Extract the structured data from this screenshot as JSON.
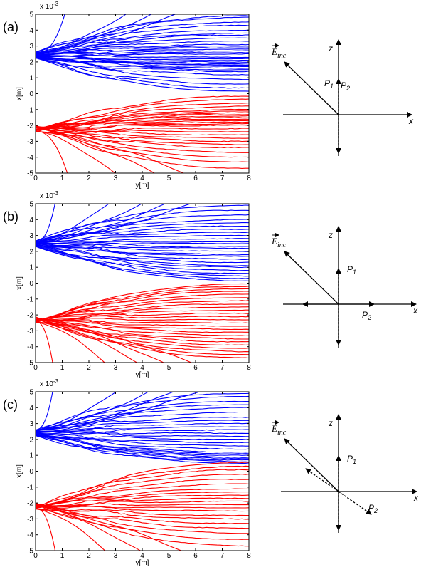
{
  "colors": {
    "upper_beam": "#0000ff",
    "lower_beam": "#ff0000",
    "axis": "#000000"
  },
  "chart_data": [
    {
      "panel": "(a)",
      "type": "line",
      "xlabel": "y[m]",
      "ylabel": "x[m]",
      "exponent_label": "x 10",
      "exponent_power": "-3",
      "xlim": [
        0,
        8
      ],
      "ylim": [
        -5,
        5
      ],
      "xticks": [
        "0",
        "1",
        "2",
        "3",
        "4",
        "5",
        "6",
        "7",
        "8"
      ],
      "yticks": [
        "5",
        "4",
        "3",
        "2",
        "1",
        "0",
        "-1",
        "-2",
        "-3",
        "-4",
        "-5"
      ],
      "grid": false,
      "beams": [
        {
          "color": "#0000ff",
          "source_center": 2.4,
          "source_spread": 0.35,
          "end_values": [
            4.9,
            4.8,
            4.5,
            4.3,
            4.0,
            3.8,
            3.7,
            3.5,
            3.3,
            3.1,
            3.0,
            2.9,
            2.8,
            2.7,
            2.6,
            2.5,
            2.3,
            2.2,
            2.1,
            2.0,
            1.9,
            1.8,
            1.8,
            1.7,
            1.6,
            1.5,
            1.4,
            1.2,
            0.9,
            0.6,
            0.35,
            0.15
          ],
          "early_exits": [
            {
              "y": 1.2,
              "x": 5.0
            },
            {
              "y": 3.9,
              "x": 5.0
            },
            {
              "y": 5.0,
              "x": 5.0
            },
            {
              "y": 6.1,
              "x": 5.0
            }
          ]
        },
        {
          "color": "#ff0000",
          "source_center": -2.2,
          "source_spread": 0.35,
          "end_values": [
            -0.15,
            -0.35,
            -0.6,
            -0.8,
            -1.0,
            -1.1,
            -1.2,
            -1.3,
            -1.4,
            -1.5,
            -1.6,
            -1.7,
            -1.8,
            -1.9,
            -2.0,
            -2.2,
            -2.4,
            -2.6,
            -2.8,
            -3.0,
            -3.2,
            -3.4,
            -3.7,
            -4.0,
            -4.3,
            -4.7
          ],
          "early_exits": [
            {
              "y": 1.3,
              "x": -5.0
            },
            {
              "y": 3.4,
              "x": -5.0
            },
            {
              "y": 5.1,
              "x": -5.0
            },
            {
              "y": 6.4,
              "x": -5.0
            }
          ]
        }
      ]
    },
    {
      "panel": "(b)",
      "type": "line",
      "xlabel": "y[m]",
      "ylabel": "x[m]",
      "exponent_label": "x 10",
      "exponent_power": "-3",
      "xlim": [
        0,
        8
      ],
      "ylim": [
        -5,
        5
      ],
      "xticks": [
        "0",
        "1",
        "2",
        "3",
        "4",
        "5",
        "6",
        "7",
        "8"
      ],
      "yticks": [
        "5",
        "4",
        "3",
        "2",
        "1",
        "0",
        "-1",
        "-2",
        "-3",
        "-4",
        "-5"
      ],
      "grid": false,
      "beams": [
        {
          "color": "#0000ff",
          "source_center": 2.5,
          "source_spread": 0.3,
          "end_values": [
            4.9,
            4.6,
            4.3,
            4.0,
            3.8,
            3.6,
            3.4,
            3.2,
            3.0,
            2.8,
            2.6,
            2.5,
            2.3,
            2.2,
            2.0,
            1.8,
            1.7,
            1.5,
            1.3,
            1.1,
            1.0,
            0.8,
            0.6,
            0.45,
            0.3,
            0.15
          ],
          "early_exits": [
            {
              "y": 0.8,
              "x": 5.0
            },
            {
              "y": 3.2,
              "x": 5.0
            },
            {
              "y": 4.6,
              "x": 5.0
            },
            {
              "y": 5.7,
              "x": 5.0
            },
            {
              "y": 6.8,
              "x": 5.0
            }
          ]
        },
        {
          "color": "#ff0000",
          "source_center": -2.3,
          "source_spread": 0.3,
          "end_values": [
            -0.05,
            -0.2,
            -0.35,
            -0.5,
            -0.7,
            -0.9,
            -1.1,
            -1.3,
            -1.5,
            -1.7,
            -1.9,
            -2.1,
            -2.3,
            -2.5,
            -2.7,
            -2.9,
            -3.1,
            -3.3,
            -3.5,
            -3.7,
            -3.9,
            -4.1,
            -4.3,
            -4.5,
            -4.7
          ],
          "early_exits": [
            {
              "y": 0.7,
              "x": -5.0
            },
            {
              "y": 3.0,
              "x": -5.0
            },
            {
              "y": 4.4,
              "x": -5.0
            },
            {
              "y": 5.5,
              "x": -5.0
            },
            {
              "y": 6.7,
              "x": -5.0
            }
          ]
        }
      ]
    },
    {
      "panel": "(c)",
      "type": "line",
      "xlabel": "y[m]",
      "ylabel": "x[m]",
      "exponent_label": "x 10",
      "exponent_power": "-3",
      "xlim": [
        0,
        8
      ],
      "ylim": [
        -5,
        5
      ],
      "xticks": [
        "0",
        "1",
        "2",
        "3",
        "4",
        "5",
        "6",
        "7",
        "8"
      ],
      "yticks": [
        "5",
        "4",
        "3",
        "2",
        "1",
        "0",
        "-1",
        "-2",
        "-3",
        "-4",
        "-5"
      ],
      "grid": false,
      "beams": [
        {
          "color": "#0000ff",
          "source_center": 2.4,
          "source_spread": 0.35,
          "end_values": [
            4.9,
            4.7,
            4.4,
            4.2,
            4.0,
            3.7,
            3.4,
            3.2,
            3.0,
            2.8,
            2.6,
            2.4,
            2.2,
            2.0,
            1.8,
            1.6,
            1.4,
            1.2,
            1.1,
            1.0,
            0.9,
            0.8,
            0.7,
            0.6,
            0.5
          ],
          "early_exits": [
            {
              "y": 0.7,
              "x": 5.0
            },
            {
              "y": 3.5,
              "x": 5.0
            },
            {
              "y": 4.9,
              "x": 5.0
            },
            {
              "y": 6.0,
              "x": 5.0
            },
            {
              "y": 7.1,
              "x": 5.0
            }
          ]
        },
        {
          "color": "#ff0000",
          "source_center": -2.2,
          "source_spread": 0.35,
          "end_values": [
            0.55,
            0.3,
            0.1,
            -0.2,
            -0.5,
            -0.8,
            -1.1,
            -1.3,
            -1.5,
            -1.7,
            -1.9,
            -2.1,
            -2.3,
            -2.5,
            -2.8,
            -3.0,
            -3.3,
            -3.6,
            -3.9,
            -4.3,
            -4.7
          ],
          "early_exits": [
            {
              "y": 0.8,
              "x": -5.0
            },
            {
              "y": 3.0,
              "x": -5.0
            },
            {
              "y": 4.5,
              "x": -5.0
            },
            {
              "y": 6.3,
              "x": -5.0
            }
          ]
        }
      ]
    }
  ],
  "diagrams": [
    {
      "panel": "(a)",
      "axis_z": "z",
      "axis_x": "x",
      "field_label": "E",
      "field_subscript": "inc",
      "p1_label": "P",
      "p1_sub": "1",
      "p2_label": "P",
      "p2_sub": "2"
    },
    {
      "panel": "(b)",
      "axis_z": "z",
      "axis_x": "x",
      "field_label": "E",
      "field_subscript": "inc",
      "p1_label": "P",
      "p1_sub": "1",
      "p2_label": "P",
      "p2_sub": "2"
    },
    {
      "panel": "(c)",
      "axis_z": "z",
      "axis_x": "x",
      "field_label": "E",
      "field_subscript": "inc",
      "p1_label": "P",
      "p1_sub": "1",
      "p2_label": "P",
      "p2_sub": "2"
    }
  ]
}
